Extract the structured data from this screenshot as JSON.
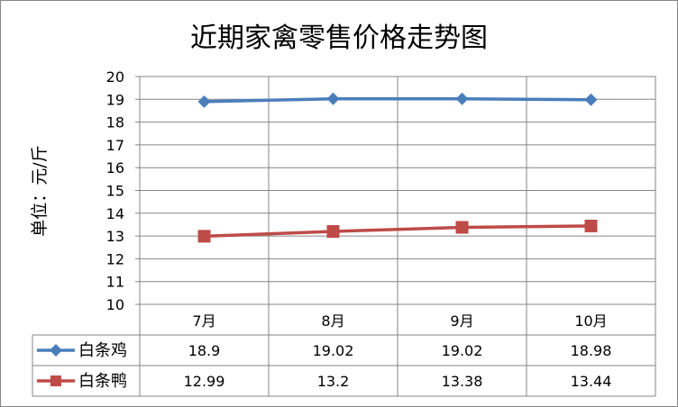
{
  "chart_data": {
    "type": "line",
    "title": "近期家禽零售价格走势图",
    "ylabel": "单位：元/斤",
    "xlabel": "",
    "categories": [
      "7月",
      "8月",
      "9月",
      "10月"
    ],
    "ylim": [
      10,
      20
    ],
    "yticks": [
      10,
      11,
      12,
      13,
      14,
      15,
      16,
      17,
      18,
      19,
      20
    ],
    "grid": true,
    "legend": "data-table-left",
    "series": [
      {
        "name": "白条鸡",
        "values": [
          18.9,
          19.02,
          19.02,
          18.98
        ],
        "labels": [
          "18.9",
          "19.02",
          "19.02",
          "18.98"
        ],
        "color": "#4a7ebb",
        "marker": "diamond"
      },
      {
        "name": "白条鸭",
        "values": [
          12.99,
          13.2,
          13.38,
          13.44
        ],
        "labels": [
          "12.99",
          "13.2",
          "13.38",
          "13.44"
        ],
        "color": "#be4b48",
        "marker": "square"
      }
    ]
  }
}
